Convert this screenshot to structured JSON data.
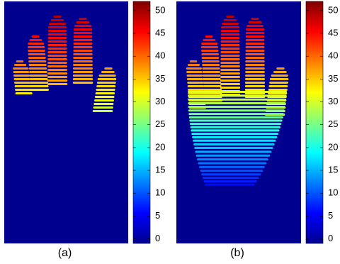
{
  "chart_data": [
    {
      "type": "heatmap",
      "caption": "(a)",
      "colormap": "jet",
      "ylim": [
        -1,
        52
      ],
      "yticks": [
        0,
        5,
        10,
        15,
        20,
        25,
        30,
        35,
        40,
        45,
        50
      ]
    },
    {
      "type": "heatmap",
      "caption": "(b)",
      "colormap": "jet",
      "ylim": [
        -1,
        52
      ],
      "yticks": [
        0,
        5,
        10,
        15,
        20,
        25,
        30,
        35,
        40,
        45,
        50
      ]
    }
  ]
}
